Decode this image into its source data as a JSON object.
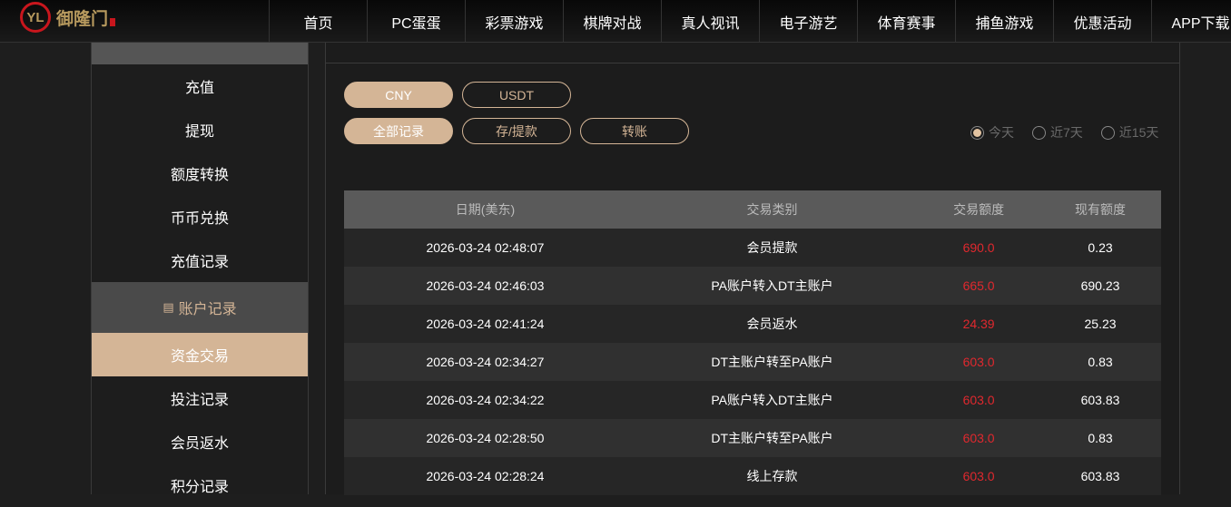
{
  "brand": {
    "name": "御隆门",
    "mark": "YL"
  },
  "nav": [
    "首页",
    "PC蛋蛋",
    "彩票游戏",
    "棋牌对战",
    "真人视讯",
    "电子游艺",
    "体育赛事",
    "捕鱼游戏",
    "优惠活动",
    "APP下载"
  ],
  "sidebar": {
    "items_a": [
      "充值",
      "提现",
      "额度转换",
      "币币兑换",
      "充值记录"
    ],
    "section": "账户记录",
    "items_b": [
      "资金交易",
      "投注记录",
      "会员返水",
      "积分记录"
    ]
  },
  "currency": [
    "CNY",
    "USDT"
  ],
  "filters": [
    "全部记录",
    "存/提款",
    "转账"
  ],
  "ranges": [
    "今天",
    "近7天",
    "近15天"
  ],
  "table": {
    "headers": [
      "日期(美东)",
      "交易类别",
      "交易额度",
      "现有额度"
    ],
    "rows": [
      [
        "2026-03-24 02:48:07",
        "会员提款",
        "690.0",
        "0.23"
      ],
      [
        "2026-03-24 02:46:03",
        "PA账户转入DT主账户",
        "665.0",
        "690.23"
      ],
      [
        "2026-03-24 02:41:24",
        "会员返水",
        "24.39",
        "25.23"
      ],
      [
        "2026-03-24 02:34:27",
        "DT主账户转至PA账户",
        "603.0",
        "0.83"
      ],
      [
        "2026-03-24 02:34:22",
        "PA账户转入DT主账户",
        "603.0",
        "603.83"
      ],
      [
        "2026-03-24 02:28:50",
        "DT主账户转至PA账户",
        "603.0",
        "0.83"
      ],
      [
        "2026-03-24 02:28:24",
        "线上存款",
        "603.0",
        "603.83"
      ]
    ]
  }
}
